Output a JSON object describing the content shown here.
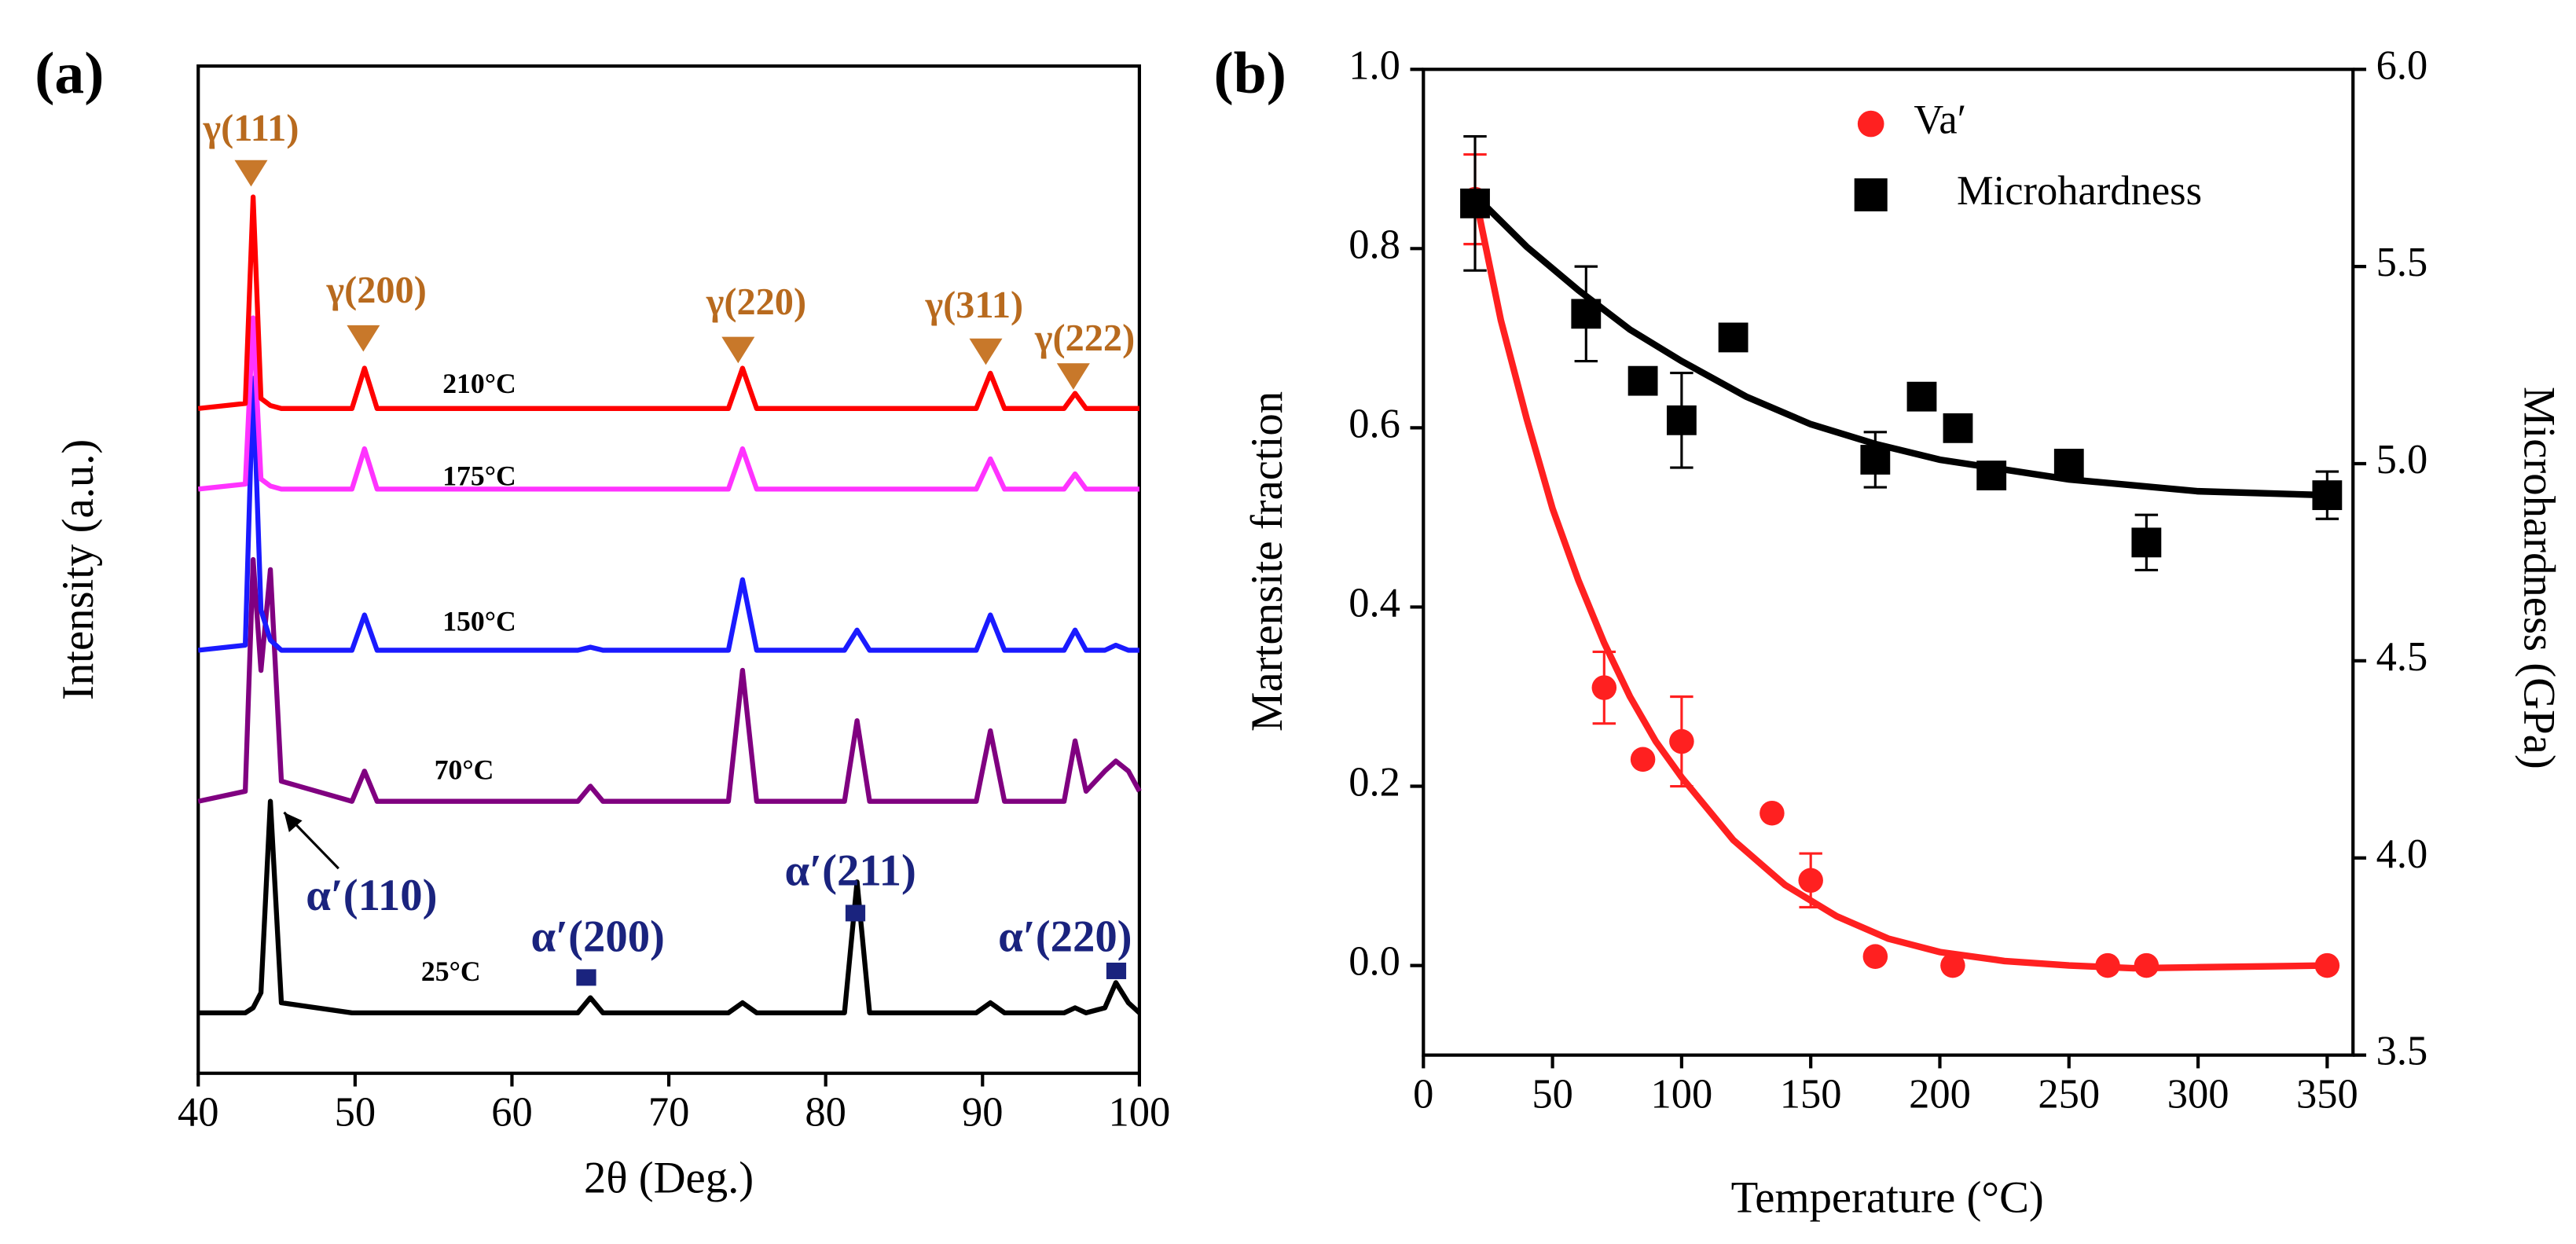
{
  "chart_data": [
    {
      "type": "line",
      "panel_label": "(a)",
      "xlabel": "2θ (Deg.)",
      "ylabel": "Intensity (a.u.)",
      "x": [
        40,
        43.0,
        43.5,
        44.0,
        44.6,
        45.3,
        49.8,
        50.6,
        51.4,
        64.2,
        65.0,
        65.8,
        73.8,
        74.7,
        75.6,
        81.2,
        82.0,
        82.8,
        89.6,
        90.5,
        91.4,
        95.2,
        95.9,
        96.6,
        97.8,
        98.5,
        99.3,
        100
      ],
      "xlim": [
        40,
        100
      ],
      "xticks": [
        40,
        50,
        60,
        70,
        80,
        90,
        100
      ],
      "ylim": [
        0,
        100
      ],
      "series": [
        {
          "name": "210°C",
          "color": "#ff0000",
          "values": [
            66,
            66.5,
            87,
            67,
            66.3,
            66,
            66,
            70,
            66,
            66,
            66,
            66,
            66,
            70,
            66,
            66,
            66,
            66,
            66,
            69.5,
            66,
            66,
            67.5,
            66,
            66,
            66,
            66,
            66
          ]
        },
        {
          "name": "175°C",
          "color": "#ff33ff",
          "values": [
            58,
            58.5,
            75,
            59,
            58.3,
            58,
            58,
            62,
            58,
            58,
            58,
            58,
            58,
            62,
            58,
            58,
            58,
            58,
            58,
            61,
            58,
            58,
            59.5,
            58,
            58,
            58,
            58,
            58
          ]
        },
        {
          "name": "150°C",
          "color": "#1a1aff",
          "values": [
            42,
            42.5,
            69,
            46,
            43,
            42,
            42,
            45.5,
            42,
            42,
            42.3,
            42,
            42,
            49,
            42,
            42,
            44,
            42,
            42,
            45.5,
            42,
            42,
            44,
            42,
            42,
            42.5,
            42,
            42
          ]
        },
        {
          "name": "70°C",
          "color": "#800080",
          "values": [
            27,
            28,
            51,
            40,
            50,
            29,
            27,
            30,
            27,
            27,
            28.5,
            27,
            27,
            40,
            27,
            27,
            35,
            27,
            27,
            34,
            27,
            27,
            33,
            28,
            30,
            31,
            30,
            28
          ]
        },
        {
          "name": "25°C",
          "color": "#000000",
          "values": [
            6,
            6,
            6.5,
            8,
            27,
            7,
            6,
            6,
            6,
            6,
            7.5,
            6,
            6,
            7,
            6,
            6,
            19,
            6,
            6,
            7,
            6,
            6,
            6.5,
            6,
            6.5,
            9,
            7,
            6
          ]
        }
      ],
      "annotations": [
        "γ(111)",
        "γ(200)",
        "γ(220)",
        "γ(311)",
        "γ(222)",
        "α′(110)",
        "α′(200)",
        "α′(211)",
        "α′(220)"
      ]
    },
    {
      "type": "scatter",
      "panel_label": "(b)",
      "xlabel": "Temperature (°C)",
      "ylabel": "Martensite fraction",
      "y2label": "Microhardness (GPa)",
      "xlim": [
        0,
        360
      ],
      "xticks": [
        0,
        50,
        100,
        150,
        200,
        250,
        300,
        350
      ],
      "ylim": [
        -0.1,
        1.0
      ],
      "yticks": [
        {
          "value": 0,
          "label": "0.0"
        },
        0.2,
        0.4,
        0.6,
        0.8,
        {
          "value": 1,
          "label": "1.0"
        }
      ],
      "y2lim": [
        3.5,
        6.0
      ],
      "y2ticks": [
        3.5,
        {
          "value": 4,
          "label": "4.0"
        },
        4.5,
        {
          "value": 5,
          "label": "5.0"
        },
        5.5,
        {
          "value": 6,
          "label": "6.0"
        }
      ],
      "legend": "top",
      "series": [
        {
          "name": "Va′",
          "color": "#ff2020",
          "marker": "circle",
          "x": [
            20,
            70,
            85,
            100,
            135,
            150,
            175,
            205,
            265,
            280,
            350
          ],
          "values": [
            0.855,
            0.31,
            0.23,
            0.25,
            0.17,
            0.095,
            0.01,
            0.0,
            0.0,
            0.0,
            0.0
          ],
          "errors": [
            0.05,
            0.04,
            null,
            0.05,
            null,
            0.03,
            null,
            null,
            null,
            null,
            null
          ],
          "fit": {
            "x": [
              20,
              30,
              40,
              50,
              60,
              70,
              80,
              90,
              100,
              120,
              140,
              160,
              180,
              200,
              225,
              250,
              275,
              300,
              350
            ],
            "values": [
              0.86,
              0.72,
              0.61,
              0.51,
              0.43,
              0.36,
              0.3,
              0.25,
              0.21,
              0.14,
              0.09,
              0.055,
              0.03,
              0.015,
              0.005,
              0,
              -0.003,
              -0.002,
              0
            ]
          }
        },
        {
          "name": "Microhardness",
          "color": "#000000",
          "marker": "square",
          "axis": "y2",
          "x": [
            20,
            63,
            85,
            100,
            120,
            175,
            193,
            207,
            220,
            250,
            280,
            350
          ],
          "values": [
            5.66,
            5.38,
            5.21,
            5.11,
            5.32,
            5.01,
            5.17,
            5.09,
            4.97,
            5.0,
            4.8,
            4.92
          ],
          "errors": [
            0.17,
            0.12,
            null,
            0.12,
            null,
            0.07,
            null,
            null,
            null,
            null,
            0.07,
            0.06
          ],
          "fit": {
            "x": [
              20,
              40,
              60,
              80,
              100,
              125,
              150,
              175,
              200,
              250,
              300,
              350
            ],
            "values": [
              5.68,
              5.55,
              5.44,
              5.34,
              5.26,
              5.17,
              5.1,
              5.05,
              5.01,
              4.96,
              4.93,
              4.92
            ]
          }
        }
      ]
    }
  ]
}
